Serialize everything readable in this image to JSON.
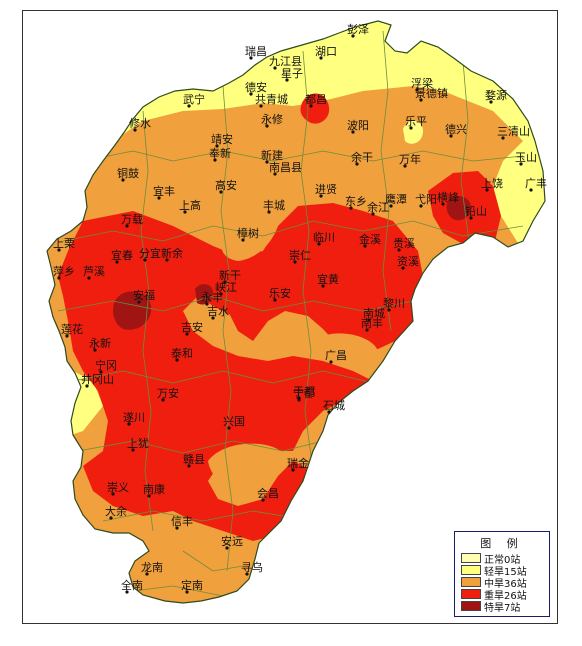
{
  "legend": {
    "title": "图 例",
    "items": [
      {
        "label": "正常0站",
        "color": "#ffffb4"
      },
      {
        "label": "轻旱15站",
        "color": "#ffff80"
      },
      {
        "label": "中旱36站",
        "color": "#f0a03c"
      },
      {
        "label": "重旱26站",
        "color": "#f01e0f"
      },
      {
        "label": "特旱7站",
        "color": "#a01414"
      }
    ]
  },
  "colors": {
    "normal": "#ffffb4",
    "light": "#ffff80",
    "moderate": "#f0a03c",
    "severe": "#f01e0f",
    "extreme": "#a01414",
    "boundary": "#6b8e3c"
  },
  "places": [
    {
      "name": "彭泽"
    },
    {
      "name": "瑞昌"
    },
    {
      "name": "九江县"
    },
    {
      "name": "湖口"
    },
    {
      "name": "德安"
    },
    {
      "name": "星子"
    },
    {
      "name": "都昌"
    },
    {
      "name": "武宁"
    },
    {
      "name": "共青城"
    },
    {
      "name": "浮梁"
    },
    {
      "name": "景德镇"
    },
    {
      "name": "婺源"
    },
    {
      "name": "修水"
    },
    {
      "name": "永修"
    },
    {
      "name": "波阳"
    },
    {
      "name": "乐平"
    },
    {
      "name": "德兴"
    },
    {
      "name": "三清山"
    },
    {
      "name": "靖安"
    },
    {
      "name": "奉新"
    },
    {
      "name": "新建"
    },
    {
      "name": "南昌县"
    },
    {
      "name": "余干"
    },
    {
      "name": "万年"
    },
    {
      "name": "玉山"
    },
    {
      "name": "铜鼓"
    },
    {
      "name": "宜丰"
    },
    {
      "name": "高安"
    },
    {
      "name": "进贤"
    },
    {
      "name": "东乡"
    },
    {
      "name": "余江"
    },
    {
      "name": "鹰潭"
    },
    {
      "name": "弋阳"
    },
    {
      "name": "横峰"
    },
    {
      "name": "铅山"
    },
    {
      "name": "上饶"
    },
    {
      "name": "广丰"
    },
    {
      "name": "上高"
    },
    {
      "name": "万载"
    },
    {
      "name": "丰城"
    },
    {
      "name": "贵溪"
    },
    {
      "name": "上栗"
    },
    {
      "name": "宜春"
    },
    {
      "name": "分宜"
    },
    {
      "name": "新余"
    },
    {
      "name": "樟树"
    },
    {
      "name": "临川"
    },
    {
      "name": "金溪"
    },
    {
      "name": "崇仁"
    },
    {
      "name": "宜黄"
    },
    {
      "name": "资溪"
    },
    {
      "name": "萍乡"
    },
    {
      "name": "芦溪"
    },
    {
      "name": "安福"
    },
    {
      "name": "新干"
    },
    {
      "name": "峡江"
    },
    {
      "name": "乐安"
    },
    {
      "name": "南城"
    },
    {
      "name": "黎川"
    },
    {
      "name": "永丰"
    },
    {
      "name": "莲花"
    },
    {
      "name": "吉安"
    },
    {
      "name": "吉水"
    },
    {
      "name": "永新"
    },
    {
      "name": "泰和"
    },
    {
      "name": "南丰"
    },
    {
      "name": "宁冈"
    },
    {
      "name": "广昌"
    },
    {
      "name": "井冈山"
    },
    {
      "name": "万安"
    },
    {
      "name": "遂川"
    },
    {
      "name": "宁都"
    },
    {
      "name": "石城"
    },
    {
      "name": "兴国"
    },
    {
      "name": "于都"
    },
    {
      "name": "上犹"
    },
    {
      "name": "赣县"
    },
    {
      "name": "瑞金"
    },
    {
      "name": "崇义"
    },
    {
      "name": "南康"
    },
    {
      "name": "会昌"
    },
    {
      "name": "大余"
    },
    {
      "name": "信丰"
    },
    {
      "name": "安远"
    },
    {
      "name": "龙南"
    },
    {
      "name": "全南"
    },
    {
      "name": "定南"
    },
    {
      "name": "寻乌"
    }
  ]
}
